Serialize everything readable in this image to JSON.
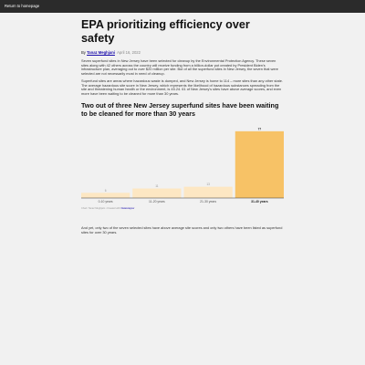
{
  "nav": {
    "back_link": "Return to homepage"
  },
  "article": {
    "title": "EPA prioritizing efficiency over safety",
    "byline_prefix": "By",
    "author": "Tanaz Meghjani",
    "date": "April 16, 2022",
    "paragraph1": "Seven superfund sites in New Jersey have been selected for cleanup by the Environmental Protection Agency. These seven sites along with 42 others across the country will receive funding from a billion-dollar pot created by President Biden's infrastructure plan, averaging out to over $20 million per site. But of all the superfund sites in New Jersey, the seven that were selected are not necessarily most in need of cleanup.",
    "paragraph2": "Superfund sites are areas where hazardous waste is dumped, and New Jersey is home to 114 – more sites than any other state. The average hazardous site score in New Jersey, which represents the likelihood of hazardous substances spreading from the site and threatening human health or the environment, is 45.24. 61 of New Jersey's sites have above average scores, and even more have been waiting to be cleaned for more than 30 years.",
    "chart_heading": "Two out of three New Jersey superfund sites have been waiting to be cleaned for more than 30 years",
    "credit_prefix": "Chart: Tanaz Meghjani • Created with",
    "credit_tool": "Datawrapper",
    "closing": "And yet, only two of the seven selected sites have above average site scores and only two others have been listed as superfund sites for over 30 years."
  },
  "colors": {
    "bar_default": "#fde7c3",
    "bar_highlight": "#f7c266",
    "axis": "#333333",
    "background": "#f1f1f1"
  },
  "chart_data": {
    "type": "bar",
    "categories": [
      "0-10 years",
      "11-20 years",
      "21-30 years",
      "31-40 years"
    ],
    "values": [
      6,
      11,
      13,
      77
    ],
    "highlight_index": 3,
    "ylim": [
      0,
      80
    ],
    "title": "",
    "xlabel": "",
    "ylabel": "",
    "grid": false
  }
}
